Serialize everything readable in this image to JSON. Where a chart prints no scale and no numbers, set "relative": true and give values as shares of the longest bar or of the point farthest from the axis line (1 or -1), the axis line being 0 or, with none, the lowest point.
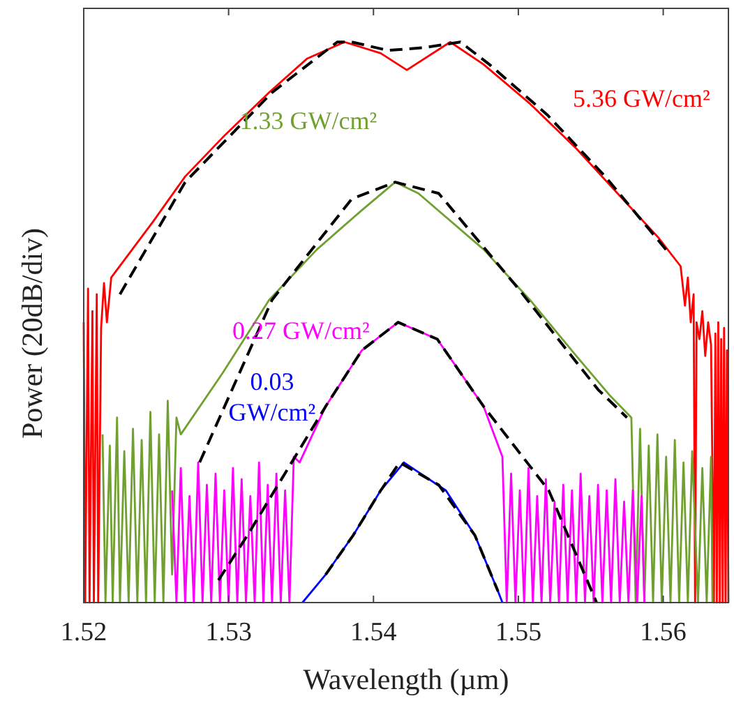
{
  "chart_data": {
    "type": "line",
    "relative": true,
    "xlabel": "Wavelength (µm)",
    "ylabel": "Power (20dB/div)",
    "xlim": [
      1.52,
      1.5645
    ],
    "xticks": [
      1.52,
      1.53,
      1.54,
      1.55,
      1.56
    ],
    "grid": false,
    "marker": "none",
    "series": [
      {
        "name": "5.36 GW/cm²",
        "color": "#ff0000",
        "x": [
          1.52,
          1.5201,
          1.5203,
          1.5204,
          1.5206,
          1.5207,
          1.5209,
          1.521,
          1.5212,
          1.5214,
          1.5216,
          1.5219,
          1.5248,
          1.527,
          1.5296,
          1.5328,
          1.5354,
          1.538,
          1.5405,
          1.5423,
          1.5453,
          1.5476,
          1.5508,
          1.554,
          1.5572,
          1.5597,
          1.5612,
          1.5615,
          1.5617,
          1.5619,
          1.5621,
          1.5622,
          1.5623,
          1.5625,
          1.5627,
          1.5629,
          1.5631,
          1.5633,
          1.5635,
          1.5636,
          1.5637,
          1.5638,
          1.5639,
          1.564,
          1.5641,
          1.5642,
          1.5643,
          1.5644,
          1.5645
        ],
        "values": [
          0.5,
          0,
          0.56,
          0,
          0.52,
          0,
          0.55,
          0,
          0.49,
          0.57,
          0.5,
          0.58,
          0.68,
          0.76,
          0.83,
          0.91,
          0.97,
          1.0,
          0.98,
          0.95,
          1.0,
          0.96,
          0.89,
          0.81,
          0.72,
          0.65,
          0.6,
          0.53,
          0.58,
          0.5,
          0.55,
          0,
          0.5,
          0.47,
          0.52,
          0.44,
          0.5,
          0.46,
          0,
          0.48,
          0,
          0.5,
          0,
          0.47,
          0,
          0.49,
          0,
          0.45,
          0
        ]
      },
      {
        "name": "1.33 GW/cm²",
        "color": "#70a030",
        "x": [
          1.5213,
          1.5215,
          1.5218,
          1.522,
          1.5223,
          1.5225,
          1.5228,
          1.5231,
          1.5234,
          1.5237,
          1.524,
          1.5243,
          1.5246,
          1.5249,
          1.5252,
          1.5255,
          1.5258,
          1.5261,
          1.5264,
          1.5267,
          1.5296,
          1.5328,
          1.5361,
          1.5392,
          1.5415,
          1.5431,
          1.5476,
          1.5508,
          1.554,
          1.5563,
          1.5578,
          1.5581,
          1.5584,
          1.5587,
          1.559,
          1.5593,
          1.5596,
          1.5599,
          1.5602,
          1.5605,
          1.5608,
          1.5611,
          1.5614,
          1.5617,
          1.562,
          1.5624,
          1.5627,
          1.563,
          1.5633,
          1.5634
        ],
        "values": [
          0.3,
          0,
          0.28,
          0,
          0.33,
          0,
          0.27,
          0,
          0.31,
          0,
          0.29,
          0,
          0.34,
          0,
          0.3,
          0,
          0.36,
          0.05,
          0.33,
          0.3,
          0.41,
          0.54,
          0.63,
          0.7,
          0.75,
          0.73,
          0.63,
          0.54,
          0.44,
          0.37,
          0.33,
          0,
          0.31,
          0,
          0.28,
          0,
          0.3,
          0,
          0.26,
          0,
          0.29,
          0,
          0.25,
          0,
          0.27,
          0,
          0.24,
          0,
          0.26,
          0
        ]
      },
      {
        "name": "0.27 GW/cm²",
        "color": "#ff00ff",
        "x": [
          1.5261,
          1.5264,
          1.5267,
          1.527,
          1.5273,
          1.5276,
          1.5279,
          1.5282,
          1.5285,
          1.5288,
          1.5291,
          1.5294,
          1.5297,
          1.53,
          1.5303,
          1.5306,
          1.5309,
          1.5312,
          1.5315,
          1.5318,
          1.5321,
          1.5324,
          1.5327,
          1.533,
          1.5333,
          1.5336,
          1.5339,
          1.5342,
          1.5345,
          1.5349,
          1.5367,
          1.5392,
          1.5417,
          1.5444,
          1.5476,
          1.5489,
          1.5492,
          1.5495,
          1.5498,
          1.5501,
          1.5504,
          1.5507,
          1.551,
          1.5513,
          1.5516,
          1.5519,
          1.5522,
          1.5525,
          1.5528,
          1.5531,
          1.5534,
          1.5537,
          1.554,
          1.5543,
          1.5546,
          1.5549,
          1.5552,
          1.5555,
          1.5558,
          1.5561,
          1.5564,
          1.5567,
          1.557,
          1.5573,
          1.5576,
          1.5579,
          1.5582,
          1.5585,
          1.5587
        ],
        "values": [
          0.2,
          0,
          0.24,
          0,
          0.19,
          0,
          0.25,
          0,
          0.21,
          0,
          0.23,
          0,
          0.2,
          0,
          0.24,
          0,
          0.22,
          0,
          0.19,
          0,
          0.25,
          0,
          0.21,
          0,
          0.23,
          0,
          0.2,
          0,
          0.26,
          0.25,
          0.35,
          0.45,
          0.5,
          0.47,
          0.35,
          0.26,
          0,
          0.23,
          0,
          0.2,
          0,
          0.24,
          0,
          0.19,
          0,
          0.22,
          0,
          0.18,
          0,
          0.21,
          0,
          0.2,
          0,
          0.23,
          0,
          0.19,
          0,
          0.21,
          0,
          0.2,
          0,
          0.22,
          0,
          0.18,
          0,
          0.2,
          0,
          0.19,
          0
        ]
      },
      {
        "name": "0.03 GW/cm²",
        "color": "#0000ff",
        "x": [
          1.5351,
          1.5367,
          1.5386,
          1.5405,
          1.5421,
          1.545,
          1.547,
          1.5486,
          1.5489
        ],
        "values": [
          0,
          0.05,
          0.12,
          0.2,
          0.25,
          0.2,
          0.12,
          0.02,
          0
        ]
      },
      {
        "color": "#000000",
        "line_style": "dashed",
        "x": [
          1.5225,
          1.527,
          1.533,
          1.5375,
          1.5385,
          1.541,
          1.5435,
          1.546,
          1.548,
          1.552,
          1.556,
          1.5605
        ],
        "values": [
          0.55,
          0.75,
          0.91,
          1.0,
          1.0,
          0.985,
          0.99,
          1.0,
          0.96,
          0.87,
          0.76,
          0.62
        ]
      },
      {
        "color": "#000000",
        "line_style": "dashed",
        "x": [
          1.528,
          1.533,
          1.5385,
          1.5415,
          1.5445,
          1.55,
          1.5555,
          1.5575
        ],
        "values": [
          0.25,
          0.54,
          0.72,
          0.75,
          0.73,
          0.56,
          0.38,
          0.33
        ]
      },
      {
        "color": "#000000",
        "line_style": "dashed",
        "x": [
          1.5293,
          1.5313,
          1.5367,
          1.5392,
          1.5417,
          1.5444,
          1.5476,
          1.5521,
          1.5554
        ],
        "values": [
          0.04,
          0.12,
          0.35,
          0.45,
          0.5,
          0.47,
          0.35,
          0.2,
          0
        ]
      },
      {
        "color": "#000000",
        "line_style": "dashed",
        "x": [
          1.5367,
          1.5386,
          1.5405,
          1.5418,
          1.5445,
          1.547,
          1.5486
        ],
        "values": [
          0.05,
          0.12,
          0.2,
          0.25,
          0.21,
          0.12,
          0.02
        ]
      }
    ]
  }
}
